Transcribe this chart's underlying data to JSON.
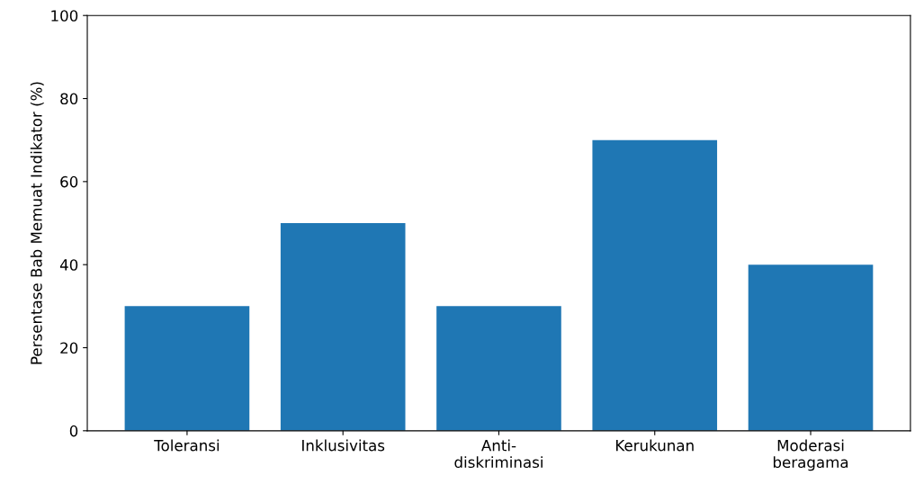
{
  "chart_data": {
    "type": "bar",
    "ylabel": "Persentase Bab Memuat Indikator (%)",
    "categories": [
      "Toleransi",
      "Inklusivitas",
      "Anti-\ndiskriminasi",
      "Kerukunan",
      "Moderasi\nberagama"
    ],
    "values": [
      30,
      50,
      30,
      70,
      40
    ],
    "color": "#1f77b4",
    "ylim": [
      0,
      100
    ],
    "yticks": [
      0,
      20,
      40,
      60,
      80,
      100
    ],
    "grid": false
  }
}
